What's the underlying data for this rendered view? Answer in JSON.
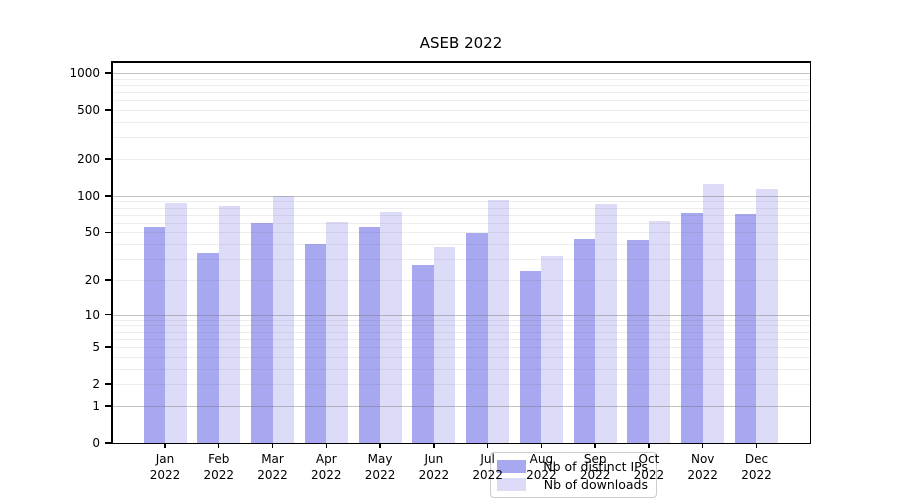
{
  "title": "ASEB 2022",
  "colors": {
    "ips_bar": "#a8a8f0",
    "downloads_bar": "#dcdcf8",
    "grid_major": "#b0b0b0",
    "grid_minor": "#e8e8e8",
    "axis": "#000000",
    "legend_border": "#cccccc"
  },
  "chart_data": {
    "type": "bar",
    "title": "ASEB 2022",
    "categories": [
      "Jan",
      "Feb",
      "Mar",
      "Apr",
      "May",
      "Jun",
      "Jul",
      "Aug",
      "Sep",
      "Oct",
      "Nov",
      "Dec"
    ],
    "category_year": "2022",
    "series": [
      {
        "name": "Nb of distinct IPs",
        "color": "#a8a8f0",
        "values": [
          55,
          34,
          60,
          40,
          55,
          27,
          49,
          24,
          44,
          43,
          72,
          71
        ]
      },
      {
        "name": "Nb of downloads",
        "color": "#dcdcf8",
        "values": [
          87,
          83,
          100,
          61,
          73,
          38,
          93,
          32,
          86,
          62,
          126,
          114
        ]
      }
    ],
    "yscale": "log1p",
    "yticks": [
      0,
      1,
      2,
      5,
      10,
      20,
      50,
      100,
      200,
      500,
      1000
    ],
    "ylim": [
      0,
      1000
    ],
    "xlabel": "",
    "ylabel": "",
    "grid": true,
    "legend_position": "lower center"
  }
}
